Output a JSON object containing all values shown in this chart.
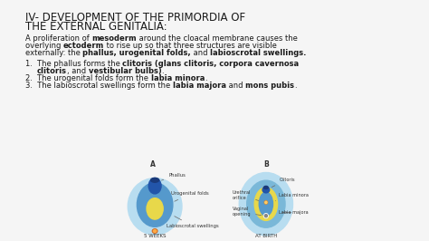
{
  "title_line1": "IV- DEVELOPMENT OF THE PRIMORDIA OF",
  "title_line2": "THE EXTERNAL GENITALIA:",
  "title_fontsize": 8.5,
  "body_fontsize": 6.0,
  "label_fontsize": 3.8,
  "background_color": "#f5f5f5",
  "text_color": "#1a1a1a",
  "color_outer_light": "#b8ddf0",
  "color_mid_blue": "#5599cc",
  "color_dark_blue": "#2255aa",
  "color_very_dark": "#1a3a7a",
  "color_yellow": "#e8d84a",
  "color_orange_circle": "#cc6622",
  "para_lines": [
    [
      [
        "A proliferation of ",
        false
      ],
      [
        "mesoderm",
        true
      ],
      [
        " around the cloacal membrane causes the",
        false
      ]
    ],
    [
      [
        "overlying ",
        false
      ],
      [
        "ectoderm",
        true
      ],
      [
        " to rise up so that three structures are visible",
        false
      ]
    ],
    [
      [
        "externally: the ",
        false
      ],
      [
        "phallus, urogenital folds,",
        true
      ],
      [
        " and ",
        false
      ],
      [
        "labioscrotal swellings.",
        true
      ]
    ]
  ],
  "item1_lines": [
    [
      [
        "1.  The phallus forms the ",
        false
      ],
      [
        "clitoris (glans clitoris, corpora cavernosa",
        true
      ]
    ],
    [
      [
        "     ",
        false
      ],
      [
        "clitoris",
        true
      ],
      [
        ", and ",
        false
      ],
      [
        "vestibular bulbs)",
        true
      ],
      [
        ".",
        false
      ]
    ]
  ],
  "item2": [
    [
      "2.  The urogenital folds form the ",
      false
    ],
    [
      "labia minora",
      true
    ],
    [
      ".",
      false
    ]
  ],
  "item3": [
    [
      "3.  The labioscrotal swellings form the ",
      false
    ],
    [
      "labia majora",
      true
    ],
    [
      " and ",
      false
    ],
    [
      "mons pubis",
      true
    ],
    [
      ".",
      false
    ]
  ]
}
